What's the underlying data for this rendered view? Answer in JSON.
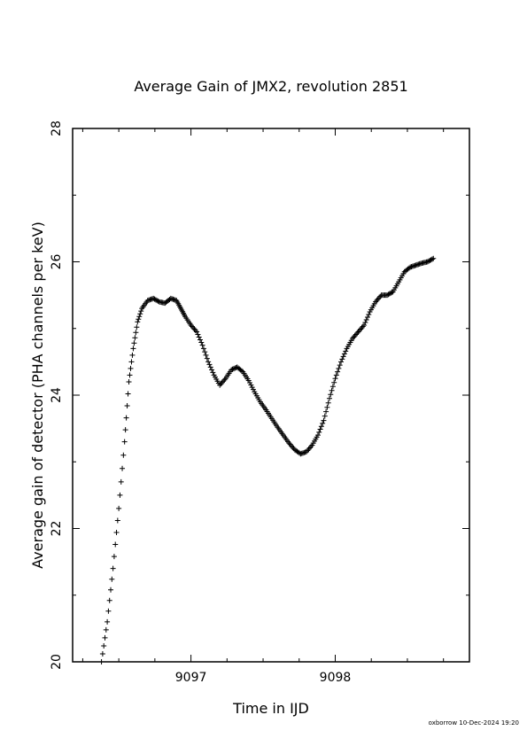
{
  "chart_data": {
    "type": "scatter",
    "title": "Average Gain of JMX2, revolution 2851",
    "xlabel": "Time in IJD",
    "ylabel": "Average gain of detector (PHA channels per keV)",
    "xlim": [
      9096.18,
      9098.93
    ],
    "ylim": [
      20,
      28
    ],
    "xticks": [
      9097,
      9098
    ],
    "yticks": [
      20,
      22,
      24,
      26,
      28
    ],
    "marker": "plus",
    "grid": false,
    "series": [
      {
        "points": [
          [
            9096.38,
            20.0
          ],
          [
            9096.42,
            20.6
          ],
          [
            9096.46,
            21.4
          ],
          [
            9096.5,
            22.3
          ],
          [
            9096.54,
            23.3
          ],
          [
            9096.57,
            24.2
          ],
          [
            9096.6,
            24.7
          ],
          [
            9096.63,
            25.1
          ],
          [
            9096.66,
            25.3
          ],
          [
            9096.7,
            25.42
          ],
          [
            9096.74,
            25.45
          ],
          [
            9096.78,
            25.4
          ],
          [
            9096.82,
            25.38
          ],
          [
            9096.86,
            25.45
          ],
          [
            9096.9,
            25.42
          ],
          [
            9096.93,
            25.3
          ],
          [
            9096.96,
            25.18
          ],
          [
            9097.0,
            25.05
          ],
          [
            9097.04,
            24.95
          ],
          [
            9097.08,
            24.75
          ],
          [
            9097.12,
            24.5
          ],
          [
            9097.16,
            24.3
          ],
          [
            9097.2,
            24.15
          ],
          [
            9097.24,
            24.25
          ],
          [
            9097.28,
            24.38
          ],
          [
            9097.32,
            24.42
          ],
          [
            9097.36,
            24.35
          ],
          [
            9097.4,
            24.22
          ],
          [
            9097.44,
            24.05
          ],
          [
            9097.48,
            23.9
          ],
          [
            9097.52,
            23.78
          ],
          [
            9097.56,
            23.65
          ],
          [
            9097.6,
            23.52
          ],
          [
            9097.64,
            23.4
          ],
          [
            9097.68,
            23.28
          ],
          [
            9097.72,
            23.18
          ],
          [
            9097.76,
            23.12
          ],
          [
            9097.8,
            23.15
          ],
          [
            9097.84,
            23.25
          ],
          [
            9097.88,
            23.4
          ],
          [
            9097.92,
            23.62
          ],
          [
            9097.96,
            23.95
          ],
          [
            9098.0,
            24.25
          ],
          [
            9098.04,
            24.5
          ],
          [
            9098.08,
            24.7
          ],
          [
            9098.12,
            24.85
          ],
          [
            9098.16,
            24.95
          ],
          [
            9098.2,
            25.05
          ],
          [
            9098.24,
            25.25
          ],
          [
            9098.28,
            25.4
          ],
          [
            9098.32,
            25.5
          ],
          [
            9098.36,
            25.5
          ],
          [
            9098.4,
            25.55
          ],
          [
            9098.44,
            25.7
          ],
          [
            9098.48,
            25.85
          ],
          [
            9098.52,
            25.92
          ],
          [
            9098.56,
            25.95
          ],
          [
            9098.6,
            25.98
          ],
          [
            9098.64,
            26.0
          ],
          [
            9098.68,
            26.05
          ]
        ]
      }
    ]
  },
  "footer": "oxborrow 10-Dec-2024 19:20"
}
